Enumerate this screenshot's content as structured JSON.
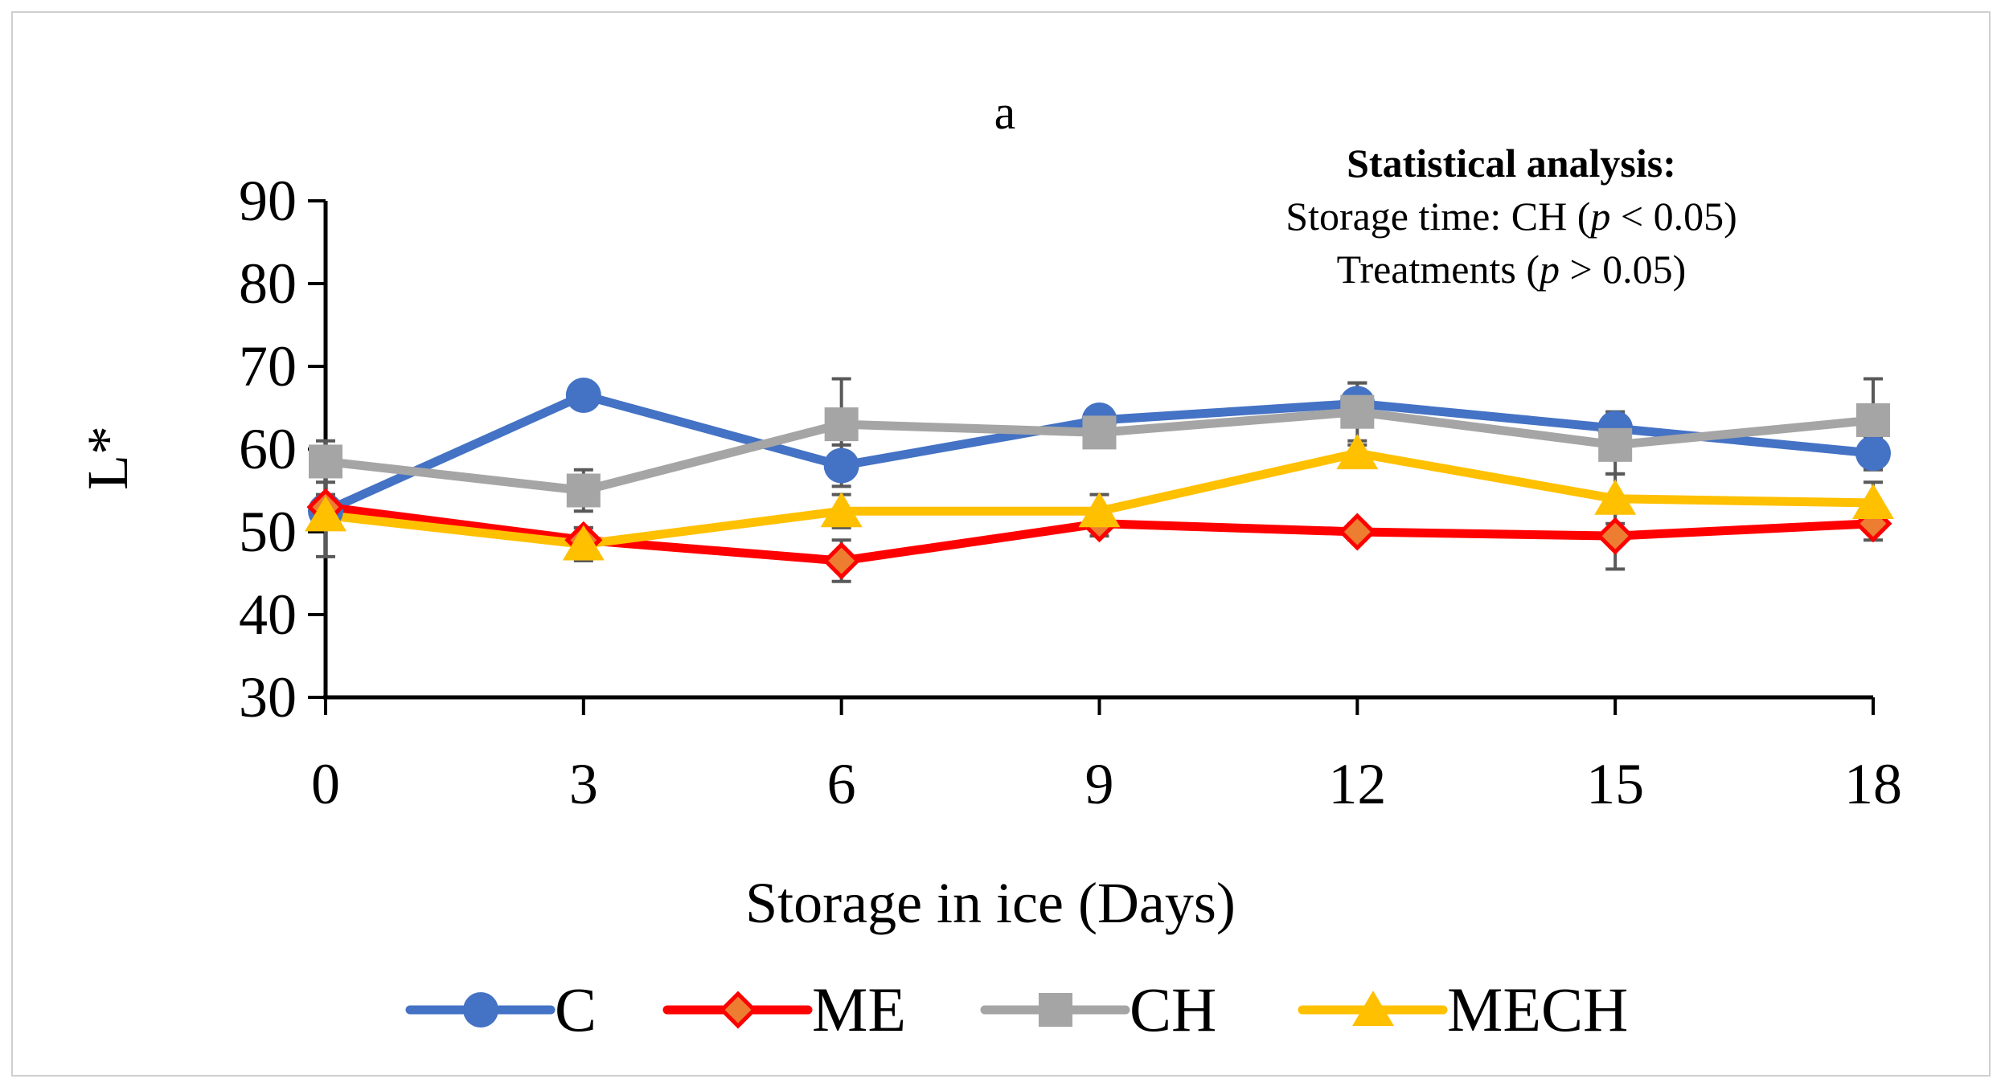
{
  "chart_data": {
    "type": "line",
    "title": "a",
    "xlabel": "Storage in ice (Days)",
    "ylabel": "L*",
    "x": [
      0,
      3,
      6,
      9,
      12,
      15,
      18
    ],
    "xlim": [
      0,
      18
    ],
    "ylim": [
      30,
      90
    ],
    "yticks": [
      30,
      40,
      50,
      60,
      70,
      80,
      90
    ],
    "grid": false,
    "legend": "bottom",
    "series": [
      {
        "name": "C",
        "color": "#4472C4",
        "marker": "circle",
        "values": [
          52.5,
          66.5,
          58,
          63.5,
          65.5,
          62.5,
          59.5
        ],
        "errors": [
          5.5,
          1.0,
          2.5,
          1.0,
          2.5,
          2.0,
          2.0
        ]
      },
      {
        "name": "ME",
        "color": "#FF0000",
        "marker": "diamond",
        "marker_fill": "#ED7D31",
        "values": [
          53,
          49,
          46.5,
          51,
          50,
          49.5,
          51
        ],
        "errors": [
          1.5,
          1.5,
          2.5,
          1.5,
          1.0,
          4.0,
          2.0
        ]
      },
      {
        "name": "CH",
        "color": "#A5A5A5",
        "marker": "square",
        "values": [
          58.5,
          55,
          63,
          62,
          64.5,
          60.5,
          63.5
        ],
        "errors": [
          2.5,
          2.5,
          5.5,
          1.5,
          3.5,
          3.5,
          5.0
        ]
      },
      {
        "name": "MECH",
        "color": "#FFC000",
        "marker": "triangle",
        "values": [
          52,
          48.5,
          52.5,
          52.5,
          59.5,
          54,
          53.5
        ],
        "errors": [
          1.0,
          2.0,
          2.0,
          2.0,
          1.0,
          3.0,
          2.5
        ]
      }
    ],
    "annotation": {
      "heading": "Statistical analysis:",
      "line1_prefix": "Storage time: CH (",
      "line1_p": "p",
      "line1_suffix": " < 0.05)",
      "line2_prefix": "Treatments (",
      "line2_p": "p",
      "line2_suffix": " > 0.05)"
    }
  }
}
